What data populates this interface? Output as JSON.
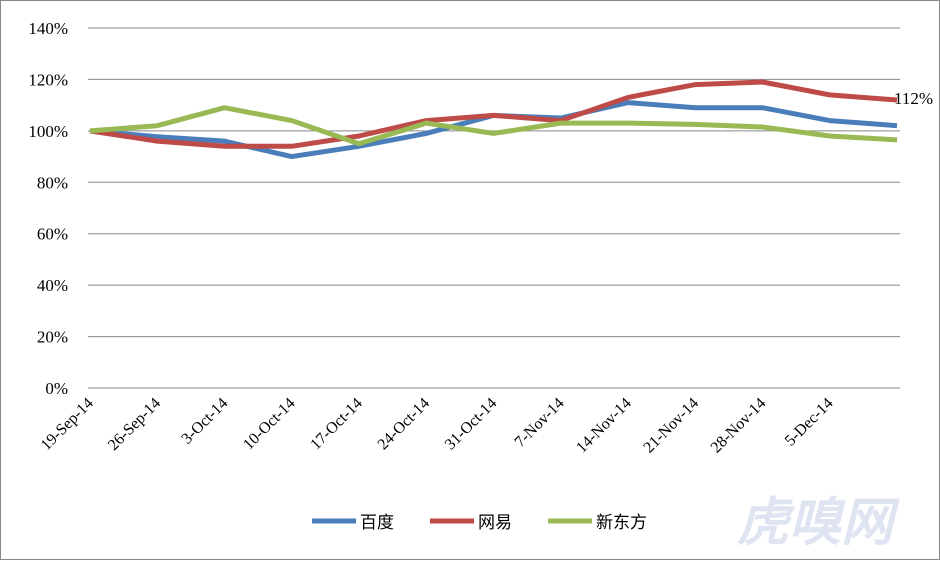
{
  "chart_data": {
    "type": "line",
    "categories": [
      "19-Sep-14",
      "26-Sep-14",
      "3-Oct-14",
      "10-Oct-14",
      "17-Oct-14",
      "24-Oct-14",
      "31-Oct-14",
      "7-Nov-14",
      "14-Nov-14",
      "21-Nov-14",
      "28-Nov-14",
      "5-Dec-14",
      null
    ],
    "series": [
      {
        "name": "百度",
        "color": "#4a7ebb",
        "values": [
          100,
          97.7,
          96,
          90,
          94,
          99,
          106,
          105,
          111,
          109,
          109,
          104,
          102
        ]
      },
      {
        "name": "网易",
        "color": "#be4b48",
        "values": [
          100,
          96,
          94,
          94,
          98,
          104,
          106,
          104,
          113,
          118,
          119,
          114,
          112
        ],
        "value_labels": [
          null,
          null,
          null,
          null,
          null,
          null,
          null,
          null,
          null,
          null,
          null,
          null,
          "112%"
        ]
      },
      {
        "name": "新东方",
        "color": "#98b954",
        "values": [
          100,
          102,
          109,
          104,
          95,
          103,
          99,
          103,
          103,
          102.5,
          101.5,
          98,
          96.5
        ]
      }
    ],
    "ylim": [
      0,
      140
    ],
    "yticks": [
      {
        "value": 0,
        "label": "0%"
      },
      {
        "value": 20,
        "label": "20%"
      },
      {
        "value": 40,
        "label": "40%"
      },
      {
        "value": 60,
        "label": "60%"
      },
      {
        "value": 80,
        "label": "80%"
      },
      {
        "value": 100,
        "label": "100%"
      },
      {
        "value": 120,
        "label": "120%"
      },
      {
        "value": 140,
        "label": "140%"
      }
    ],
    "grid": true,
    "legend": "bottom",
    "watermark": "虎嗅网"
  }
}
